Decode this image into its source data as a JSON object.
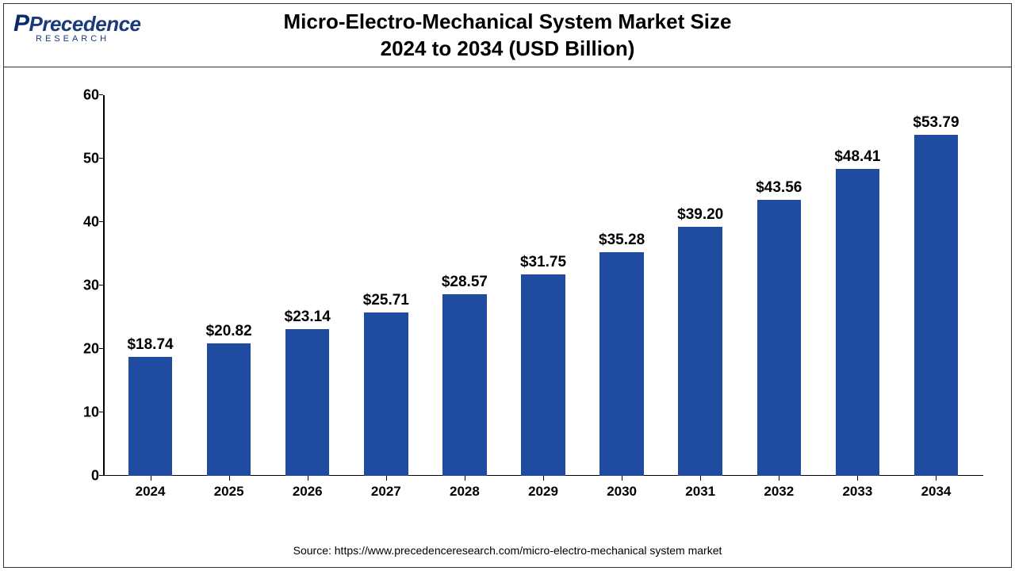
{
  "logo": {
    "main": "Precedence",
    "sub": "RESEARCH"
  },
  "title": {
    "line1": "Micro-Electro-Mechanical System Market Size",
    "line2": "2024 to 2034 (USD Billion)"
  },
  "chart": {
    "type": "bar",
    "ylim": [
      0,
      60
    ],
    "ytick_step": 10,
    "yticks": [
      0,
      10,
      20,
      30,
      40,
      50,
      60
    ],
    "categories": [
      "2024",
      "2025",
      "2026",
      "2027",
      "2028",
      "2029",
      "2030",
      "2031",
      "2032",
      "2033",
      "2034"
    ],
    "values": [
      18.74,
      20.82,
      23.14,
      25.71,
      28.57,
      31.75,
      35.28,
      39.2,
      43.56,
      48.41,
      53.79
    ],
    "value_labels": [
      "$18.74",
      "$20.82",
      "$23.14",
      "$25.71",
      "$28.57",
      "$31.75",
      "$35.28",
      "$39.20",
      "$43.56",
      "$48.41",
      "$53.79"
    ],
    "bar_color": "#1f4ba0",
    "axis_color": "#000000",
    "background_color": "#ffffff",
    "bar_width": 0.56,
    "label_fontsize": 19,
    "tick_fontsize": 18,
    "title_fontsize": 26
  },
  "source": "Source: https://www.precedenceresearch.com/micro-electro-mechanical system market"
}
